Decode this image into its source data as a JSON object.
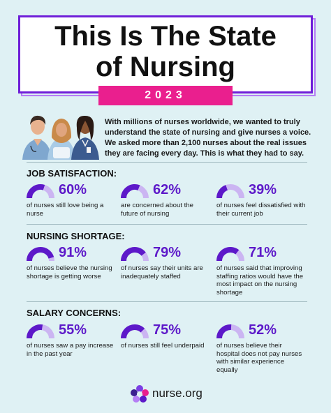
{
  "header": {
    "title_line1": "This Is The State",
    "title_line2": "of Nursing",
    "year": "2023"
  },
  "intro": "With millions of nurses worldwide, we wanted to truly understand the state of nursing and give nurses a voice. We asked more than 2,100 nurses about the real issues they are facing every day. This is what they had to say.",
  "colors": {
    "accent_purple": "#5d19c9",
    "gauge_track": "#cbb5f2",
    "pink": "#ea1f8e",
    "background": "#dff1f4"
  },
  "sections": [
    {
      "title": "JOB SATISFACTION:",
      "stats": [
        {
          "pct": "60%",
          "value": 60,
          "desc": "of nurses still love being a nurse"
        },
        {
          "pct": "62%",
          "value": 62,
          "desc": "are concerned about the future of nursing"
        },
        {
          "pct": "39%",
          "value": 39,
          "desc": "of nurses feel dissatisfied with their current job"
        }
      ]
    },
    {
      "title": "NURSING SHORTAGE:",
      "stats": [
        {
          "pct": "91%",
          "value": 91,
          "desc": "of nurses believe the nursing shortage is getting worse"
        },
        {
          "pct": "79%",
          "value": 79,
          "desc": "of nurses say their units are inadequately staffed"
        },
        {
          "pct": "71%",
          "value": 71,
          "desc": "of nurses said that improving staffing ratios would have the most impact on the nursing shortage"
        }
      ]
    },
    {
      "title": "SALARY CONCERNS:",
      "stats": [
        {
          "pct": "55%",
          "value": 55,
          "desc": "of nurses saw a pay increase in the past year"
        },
        {
          "pct": "75%",
          "value": 75,
          "desc": "of nurses still feel underpaid"
        },
        {
          "pct": "52%",
          "value": 52,
          "desc": "of nurses believe their hospital does not pay nurses with similar experience equally"
        }
      ]
    }
  ],
  "footer": {
    "logo_text": "nurse.org",
    "logo_icon": "nurse-org-logo-icon"
  }
}
